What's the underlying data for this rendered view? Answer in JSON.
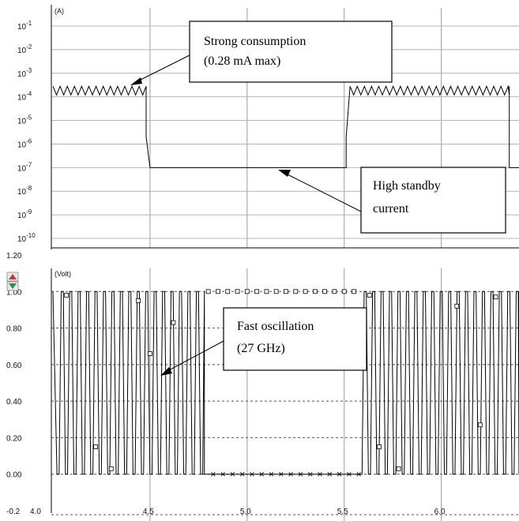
{
  "chart_data": [
    {
      "type": "line",
      "title": "",
      "unit_label": "(A)",
      "y_scale": "log",
      "ylim": [
        1e-10,
        1
      ],
      "xlim": [
        4.0,
        6.4
      ],
      "y_tick_exponents": [
        "-1",
        "-2",
        "-3",
        "-4",
        "-5",
        "-6",
        "-7",
        "-8",
        "-9",
        "-10"
      ],
      "y_tick_base": "10",
      "series": [
        {
          "x": [
            4.0,
            4.48,
            4.48,
            4.5,
            4.5,
            5.51,
            5.51,
            5.53,
            5.53,
            6.35,
            6.35,
            6.4
          ],
          "y": [
            0.00028,
            0.00028,
            2e-06,
            1e-07,
            1e-07,
            1e-07,
            2e-06,
            0.00028,
            0.00028,
            0.00028,
            1e-07,
            1e-07
          ],
          "ripple_period": 0.037,
          "ripple_low": 0.00012
        }
      ],
      "annotations": [
        {
          "lines": [
            "Strong consumption",
            "(0.28 mA max)"
          ]
        },
        {
          "lines": [
            "High standby",
            "current"
          ]
        }
      ]
    },
    {
      "type": "line",
      "title": "",
      "unit_label": "(Volt)",
      "ylim": [
        -0.05,
        1.2
      ],
      "xlim": [
        4.0,
        6.4
      ],
      "y_ticks": [
        "1.20",
        "1.00",
        "0.80",
        "0.60",
        "0.40",
        "0.20",
        "0.00",
        "-0.2"
      ],
      "x_ticks": [
        "4.0",
        "4.5",
        "5.0",
        "5.5",
        "6.0"
      ],
      "series": [
        {
          "oscillation_periods": 0.0435,
          "active_ranges": [
            [
              4.01,
              4.78
            ],
            [
              5.57,
              6.4
            ]
          ],
          "high": 1.0,
          "low": 0.0
        }
      ],
      "annotations": [
        {
          "lines": [
            "Fast oscillation",
            "(27 GHz)"
          ]
        }
      ]
    }
  ]
}
